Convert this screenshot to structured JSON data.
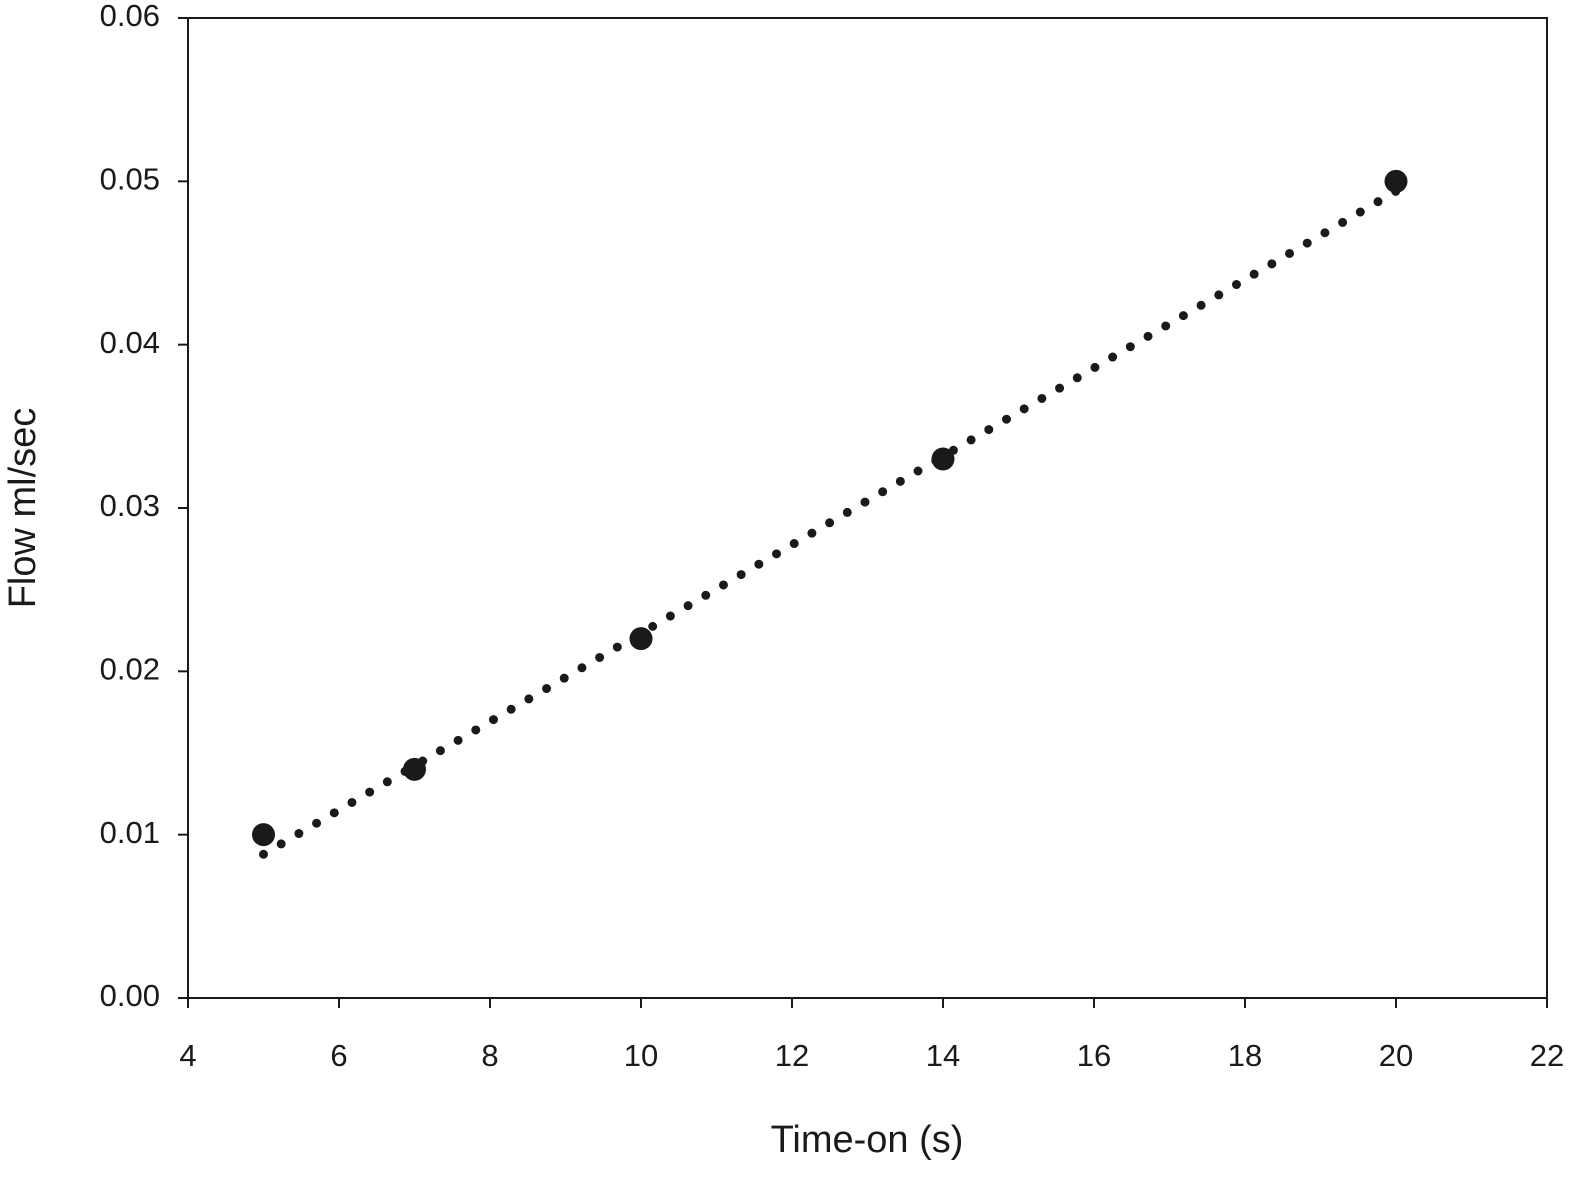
{
  "chart_data": {
    "type": "scatter",
    "xlabel": "Time-on (s)",
    "ylabel": "Flow ml/sec",
    "series": [
      {
        "x": [
          5,
          7,
          10,
          14,
          20
        ],
        "values": [
          0.01,
          0.014,
          0.022,
          0.033,
          0.05
        ],
        "color": "#1a1a1a",
        "style": "markers"
      },
      {
        "x": [
          5,
          20
        ],
        "values": [
          0.0088,
          0.0494
        ],
        "color": "#1a1a1a",
        "style": "dotted"
      }
    ],
    "xlim": [
      4,
      22
    ],
    "xticks": [
      4,
      6,
      8,
      10,
      12,
      14,
      16,
      18,
      20,
      22
    ],
    "ylim": [
      0,
      0.06
    ],
    "yticks": [
      {
        "value": 0,
        "label": "0.00"
      },
      0.01,
      0.02,
      0.03,
      0.04,
      0.05,
      0.06
    ],
    "grid": false
  }
}
